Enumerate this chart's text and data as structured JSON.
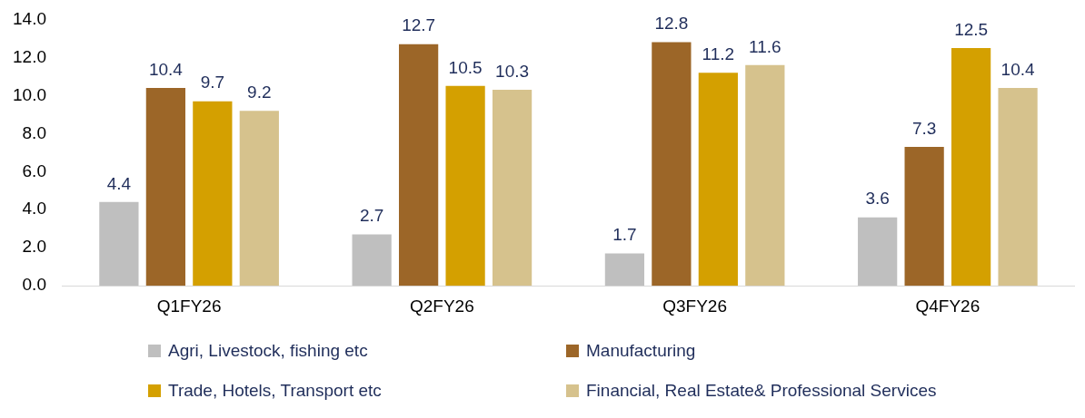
{
  "chart_data": {
    "type": "bar",
    "categories": [
      "Q1FY26",
      "Q2FY26",
      "Q3FY26",
      "Q4FY26"
    ],
    "series": [
      {
        "name": "Agri, Livestock, fishing etc",
        "color": "#bfbfbf",
        "values": [
          4.4,
          2.7,
          1.7,
          3.6
        ]
      },
      {
        "name": "Manufacturing",
        "color": "#9c6628",
        "values": [
          10.4,
          12.7,
          12.8,
          7.3
        ]
      },
      {
        "name": "Trade, Hotels, Transport etc",
        "color": "#d4a000",
        "values": [
          9.7,
          10.5,
          11.2,
          12.5
        ]
      },
      {
        "name": "Financial, Real Estate& Professional Services",
        "color": "#d6c28d",
        "values": [
          9.2,
          10.3,
          11.6,
          10.4
        ]
      }
    ],
    "ylim": [
      0,
      14
    ],
    "yticks": [
      {
        "value": 0,
        "label": "0.0"
      },
      {
        "value": 2,
        "label": "2.0"
      },
      {
        "value": 4,
        "label": "4.0"
      },
      {
        "value": 6,
        "label": "6.0"
      },
      {
        "value": 8,
        "label": "8.0"
      },
      {
        "value": 10,
        "label": "10.0"
      },
      {
        "value": 12,
        "label": "12.0"
      },
      {
        "value": 14,
        "label": "14.0"
      }
    ],
    "grid": false,
    "legend": "bottom",
    "data_labels": true
  }
}
